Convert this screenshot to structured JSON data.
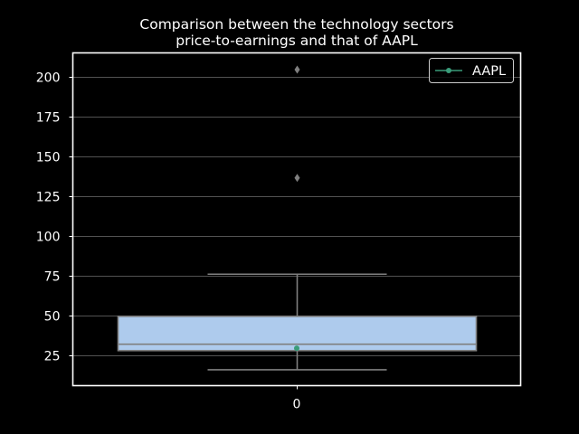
{
  "chart_data": {
    "type": "box",
    "title": "Comparison between the technology sectors\nprice-to-earnings and that of AAPL",
    "title_lines": [
      "Comparison between the technology sectors",
      "price-to-earnings and that of AAPL"
    ],
    "xlabel": "",
    "ylabel": "",
    "categories": [
      "0"
    ],
    "ylim": [
      6,
      215
    ],
    "yticks": [
      25,
      50,
      75,
      100,
      125,
      150,
      175,
      200
    ],
    "grid": true,
    "box": {
      "whisker_low": 16,
      "q1": 28,
      "median": 32,
      "q3": 49.5,
      "whisker_high": 76,
      "outliers": [
        136.5,
        204.5
      ],
      "color": "#aecbed"
    },
    "series": [
      {
        "name": "AAPL",
        "type": "line",
        "marker": "o",
        "x": [
          "0"
        ],
        "values": [
          29.5
        ],
        "color": "#3a9c7a"
      }
    ],
    "legend": {
      "position": "top-right",
      "entries": [
        "AAPL"
      ]
    },
    "colors": {
      "background": "#000000",
      "axes_edge": "#ffffff",
      "grid": "#6e6e6e",
      "box_edge": "#7f7f7f",
      "text": "#ffffff"
    }
  }
}
